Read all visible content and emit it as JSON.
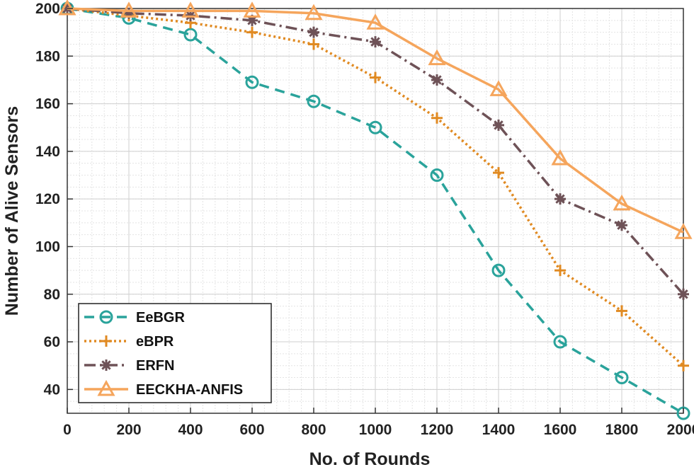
{
  "chart_data": {
    "type": "line",
    "title": "",
    "xlabel": "No. of Rounds",
    "ylabel": "Number of Alive Sensors",
    "x": [
      0,
      200,
      400,
      600,
      800,
      1000,
      1200,
      1400,
      1600,
      1800,
      2000
    ],
    "xlim": [
      0,
      2000
    ],
    "ylim": [
      30,
      200
    ],
    "xticks": [
      0,
      200,
      400,
      600,
      800,
      1000,
      1200,
      1400,
      1600,
      1800,
      2000
    ],
    "yticks": [
      40,
      60,
      80,
      100,
      120,
      140,
      160,
      180,
      200
    ],
    "grid": true,
    "minor_grid": true,
    "legend_position": "bottom-left",
    "series": [
      {
        "name": "EeBGR",
        "values": [
          200,
          196,
          189,
          169,
          161,
          150,
          130,
          90,
          60,
          45,
          30
        ],
        "color": "#2aa39b",
        "line_style": "dashed",
        "marker": "circle"
      },
      {
        "name": "eBPR",
        "values": [
          200,
          197,
          194,
          190,
          185,
          171,
          154,
          131,
          90,
          73,
          50
        ],
        "color": "#e08a22",
        "line_style": "dotted",
        "marker": "plus"
      },
      {
        "name": "ERFN",
        "values": [
          200,
          198,
          197,
          195,
          190,
          186,
          170,
          151,
          120,
          109,
          80
        ],
        "color": "#6e5257",
        "line_style": "dashdot",
        "marker": "asterisk"
      },
      {
        "name": "EECKHA-ANFIS",
        "values": [
          200,
          199,
          199,
          199,
          198,
          194,
          179,
          166,
          137,
          118,
          106
        ],
        "color": "#f5a55c",
        "line_style": "solid",
        "marker": "triangle"
      }
    ]
  }
}
